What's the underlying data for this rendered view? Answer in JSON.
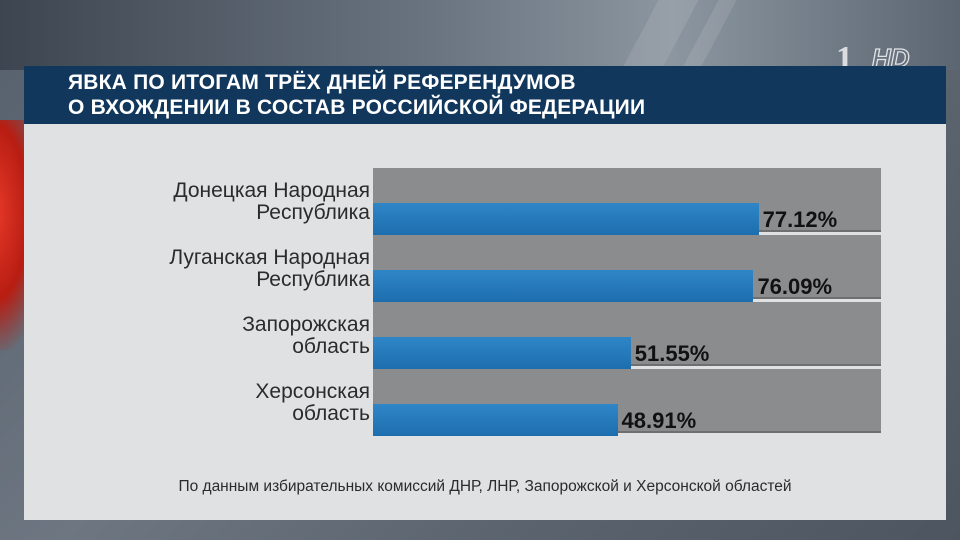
{
  "title_lines": [
    "ЯВКА ПО ИТОГАМ ТРЁХ ДНЕЙ РЕФЕРЕНДУМОВ",
    "О ВХОЖДЕНИИ В СОСТАВ РОССИЙСКОЙ ФЕДЕРАЦИИ"
  ],
  "logo": {
    "number": "1",
    "text": "HD"
  },
  "source": "По данным избирательных комиссий ДНР, ЛНР, Запорожской и Херсонской областей",
  "colors": {
    "bar": "#1f75b8",
    "title_bar": "#12375c",
    "panel": "#dfe1e3",
    "grid": "#8b8c8e"
  },
  "chart_data": {
    "type": "bar",
    "orientation": "horizontal",
    "categories": [
      [
        "Донецкая Народная",
        "Республика"
      ],
      [
        "Луганская Народная",
        "Республика"
      ],
      [
        "Запорожская",
        "область"
      ],
      [
        "Херсонская",
        "область"
      ]
    ],
    "values": [
      77.12,
      76.09,
      51.55,
      48.91
    ],
    "value_labels": [
      "77.12%",
      "76.09%",
      "51.55%",
      "48.91%"
    ],
    "xlim": [
      0,
      100
    ],
    "grid": true,
    "legend": "none"
  }
}
